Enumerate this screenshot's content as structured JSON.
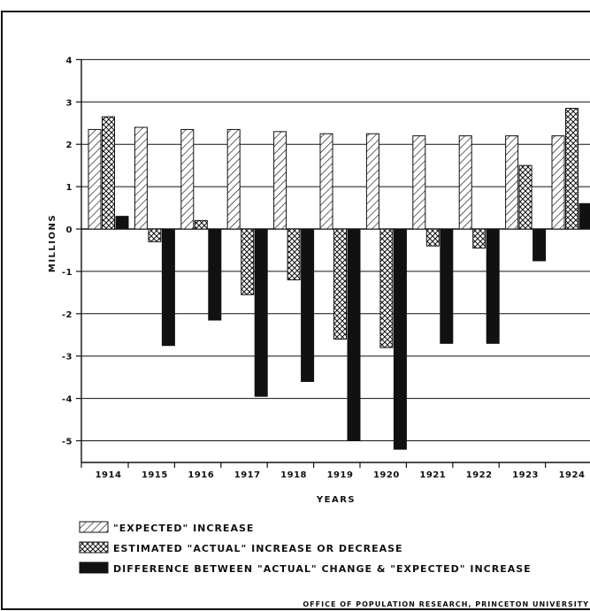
{
  "chart_data": {
    "type": "bar",
    "title": "",
    "xlabel": "YEARS",
    "ylabel": "MILLIONS",
    "ylim": [
      -5.5,
      4
    ],
    "yticks": [
      4,
      3,
      2,
      1,
      0,
      -1,
      -2,
      -3,
      -4,
      -5
    ],
    "grid": true,
    "legend_position": "bottom-left",
    "categories": [
      "1914",
      "1915",
      "1916",
      "1917",
      "1918",
      "1919",
      "1920",
      "1921",
      "1922",
      "1923",
      "1924"
    ],
    "series": [
      {
        "name": "\"EXPECTED\" INCREASE",
        "pattern": "hatch",
        "values": [
          2.35,
          2.4,
          2.35,
          2.35,
          2.3,
          2.25,
          2.25,
          2.2,
          2.2,
          2.2,
          2.2
        ]
      },
      {
        "name": "ESTIMATED \"ACTUAL\" INCREASE OR DECREASE",
        "pattern": "crosshatch",
        "values": [
          2.65,
          -0.3,
          0.2,
          -1.55,
          -1.2,
          -2.6,
          -2.8,
          -0.4,
          -0.45,
          1.5,
          2.85
        ]
      },
      {
        "name": "DIFFERENCE BETWEEN \"ACTUAL\" CHANGE & \"EXPECTED\" INCREASE",
        "pattern": "solid",
        "values": [
          0.3,
          -2.75,
          -2.15,
          -3.95,
          -3.6,
          -5.0,
          -5.2,
          -2.7,
          -2.7,
          -0.75,
          0.6
        ]
      }
    ]
  },
  "credit": "OFFICE OF POPULATION RESEARCH, PRINCETON UNIVERSITY",
  "colors": {
    "ink": "#111111",
    "background": "#ffffff"
  }
}
